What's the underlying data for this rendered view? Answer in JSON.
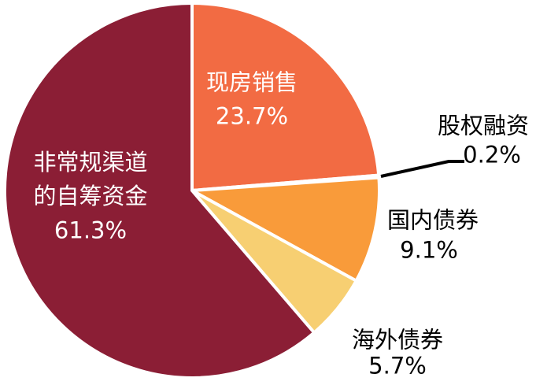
{
  "chart_data": {
    "type": "pie",
    "categories": [
      "现房销售",
      "股权融资",
      "国内债券",
      "海外债券",
      "非常规渠道的自筹资金"
    ],
    "values": [
      23.7,
      0.2,
      9.1,
      5.7,
      61.3
    ],
    "value_labels": [
      "23.7%",
      "0.2%",
      "9.1%",
      "5.7%",
      "61.3%"
    ],
    "colors": [
      "#f26b43",
      "#f26b43",
      "#f99b3a",
      "#f7cf72",
      "#8b1e35"
    ]
  }
}
